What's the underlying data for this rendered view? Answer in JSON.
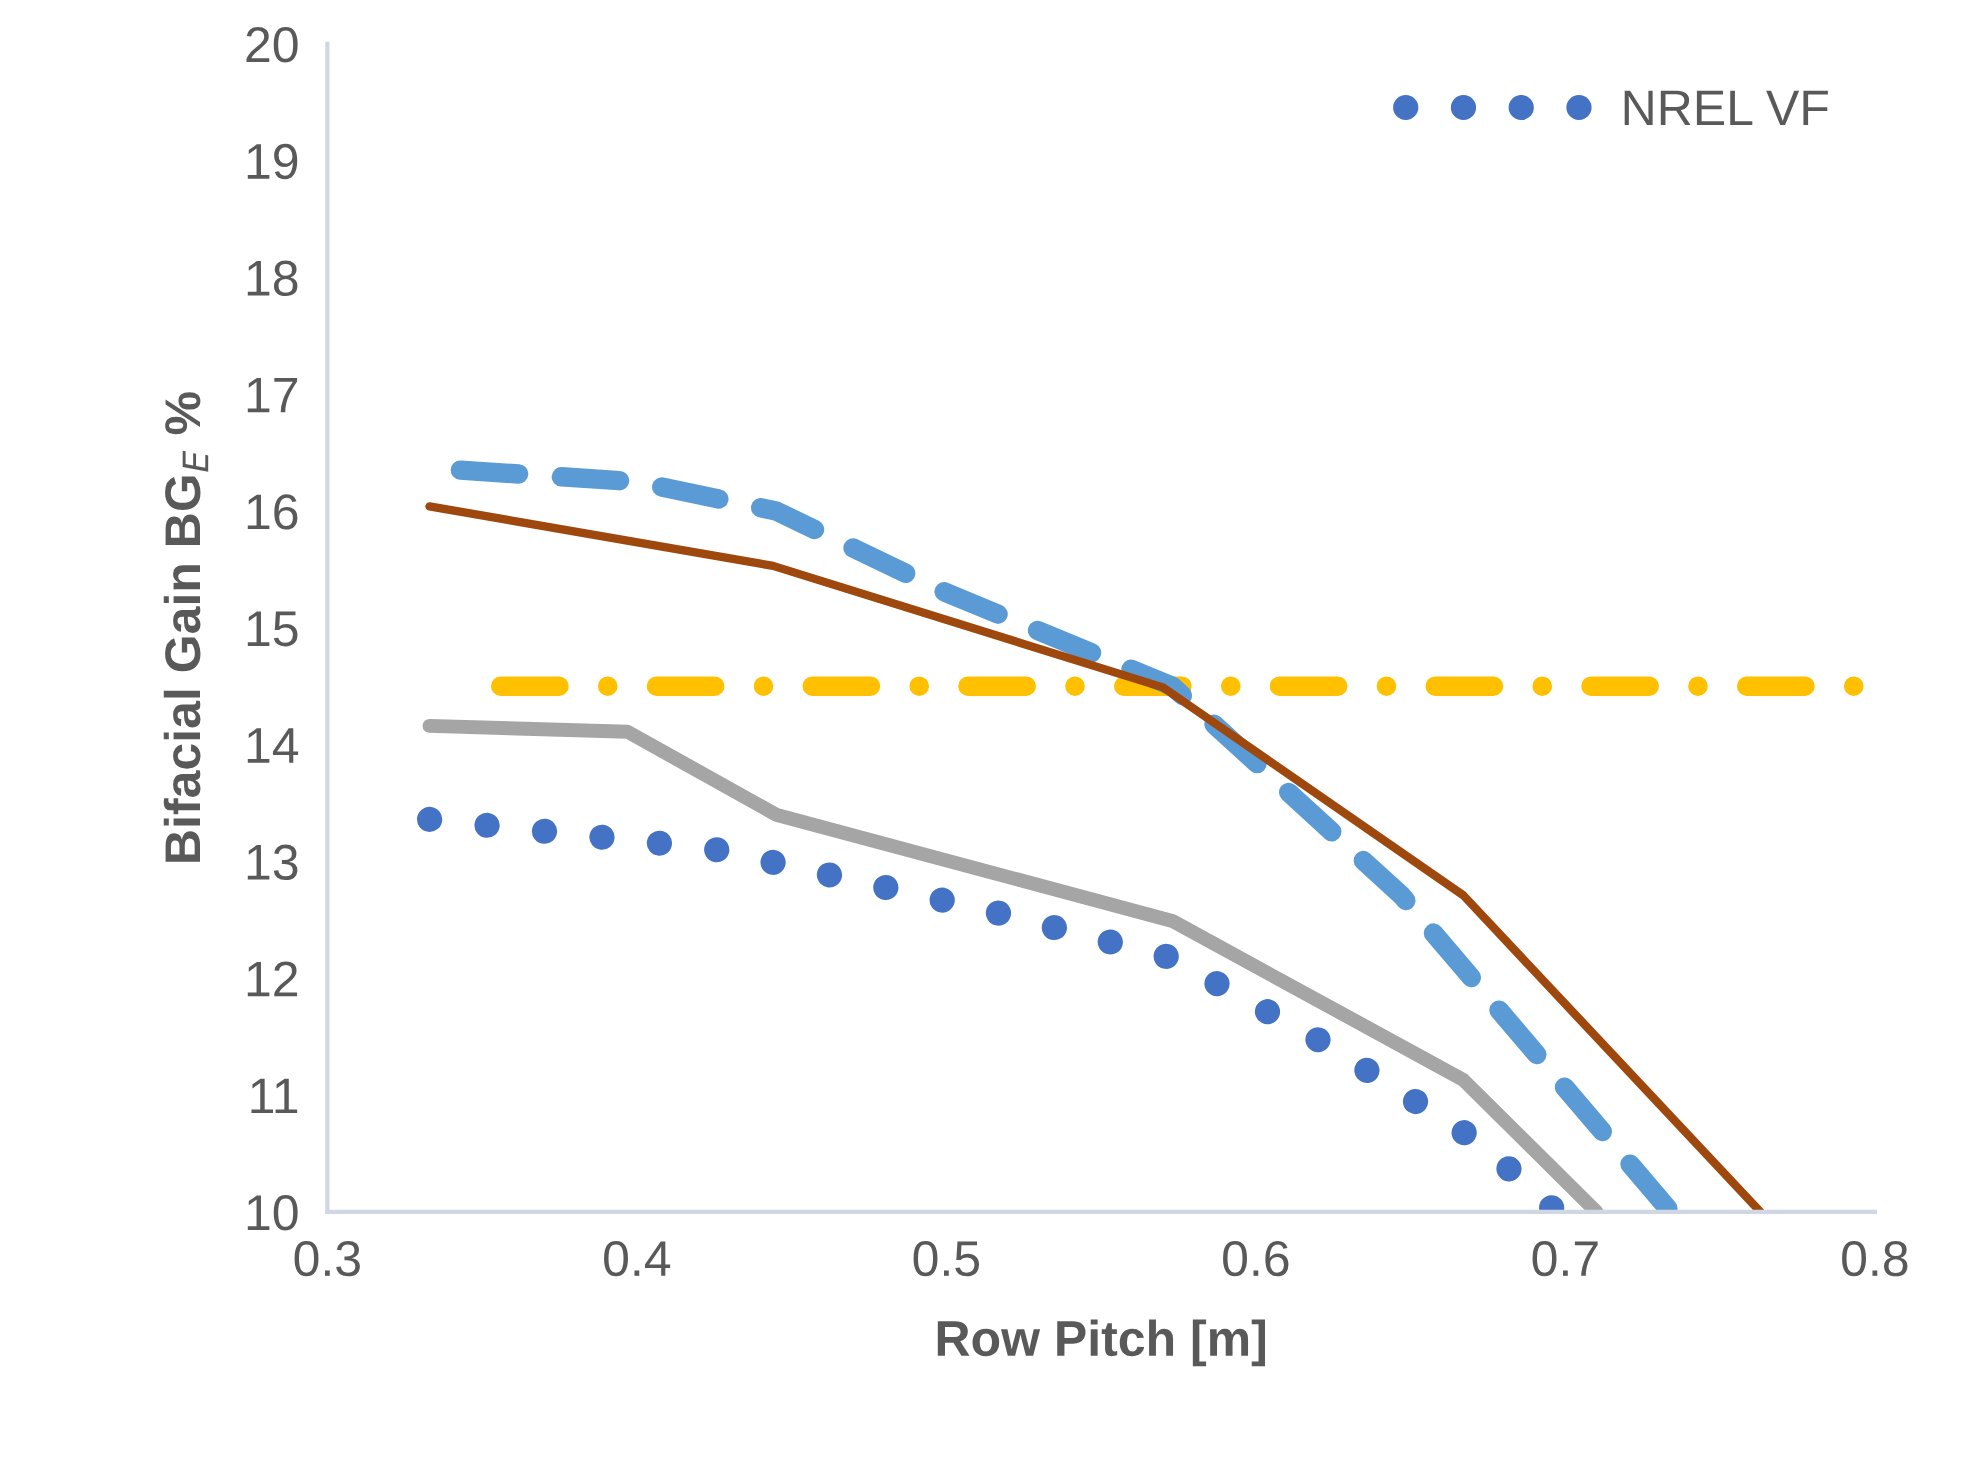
{
  "chart_data": {
    "type": "line",
    "xlabel": "Row Pitch [m]",
    "ylabel": "Bifacial Gain BG$_{E}$ %",
    "xlim": [
      0.3,
      0.8
    ],
    "xticks": [
      0.3,
      0.4,
      0.5,
      0.6,
      0.7,
      0.8
    ],
    "ylim": [
      10,
      20
    ],
    "yticks": [
      10,
      11,
      12,
      13,
      14,
      15,
      16,
      17,
      18,
      19,
      20
    ],
    "grid": false,
    "legend": "top right",
    "marker": "none",
    "series": [
      {
        "name": "NREL VF",
        "color": "#4472c4",
        "line_style": "dotted",
        "x": [
          0.333,
          0.424,
          0.512,
          0.572,
          0.623,
          0.673,
          0.697
        ],
        "values": [
          13.36,
          13.11,
          12.59,
          12.18,
          11.43,
          10.58,
          10.0
        ]
      },
      {
        "color": "#a5a5a5",
        "line_style": "solid",
        "x": [
          0.333,
          0.397,
          0.445,
          0.573,
          0.667,
          0.71
        ],
        "values": [
          14.16,
          14.11,
          13.4,
          12.49,
          11.13,
          10.0
        ]
      },
      {
        "color": "#ffc000",
        "line_style": "dashdot",
        "x": [
          0.356,
          0.8
        ],
        "values": [
          14.5,
          14.5
        ]
      },
      {
        "color": "#5b9bd5",
        "line_style": "dashed",
        "x": [
          0.343,
          0.4,
          0.445,
          0.5,
          0.573,
          0.647,
          0.734
        ],
        "values": [
          16.35,
          16.25,
          16.0,
          15.3,
          14.5,
          12.71,
          10.0
        ]
      },
      {
        "color": "#9e480e",
        "line_style": "solid",
        "x": [
          0.333,
          0.444,
          0.57,
          0.667,
          0.763
        ],
        "values": [
          16.04,
          15.53,
          14.49,
          12.71,
          10.0
        ]
      }
    ]
  }
}
